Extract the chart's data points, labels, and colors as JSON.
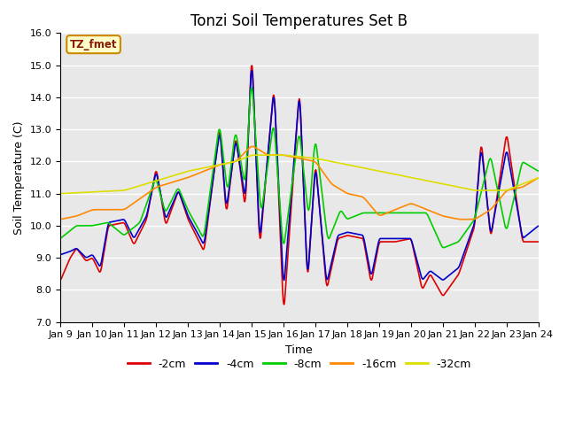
{
  "title": "Tonzi Soil Temperatures Set B",
  "xlabel": "Time",
  "ylabel": "Soil Temperature (C)",
  "ylim": [
    7.0,
    16.0
  ],
  "yticks": [
    7.0,
    8.0,
    9.0,
    10.0,
    11.0,
    12.0,
    13.0,
    14.0,
    15.0,
    16.0
  ],
  "xtick_labels": [
    "Jan 9",
    "Jan 10",
    "Jan 11",
    "Jan 12",
    "Jan 13",
    "Jan 14",
    "Jan 15",
    "Jan 16",
    "Jan 17",
    "Jan 18",
    "Jan 19",
    "Jan 20",
    "Jan 21",
    "Jan 22",
    "Jan 23",
    "Jan 24"
  ],
  "lines": {
    "-2cm": {
      "color": "#dd0000",
      "linewidth": 1.2
    },
    "-4cm": {
      "color": "#0000cc",
      "linewidth": 1.2
    },
    "-8cm": {
      "color": "#00cc00",
      "linewidth": 1.2
    },
    "-16cm": {
      "color": "#ff8800",
      "linewidth": 1.2
    },
    "-32cm": {
      "color": "#dddd00",
      "linewidth": 1.2
    }
  },
  "legend_label": "TZ_fmet",
  "legend_box_color": "#ffffcc",
  "legend_box_edge": "#cc8800",
  "plot_bg_color": "#e8e8e8",
  "grid_color": "#ffffff",
  "title_fontsize": 12,
  "axis_label_fontsize": 9,
  "tick_fontsize": 8
}
